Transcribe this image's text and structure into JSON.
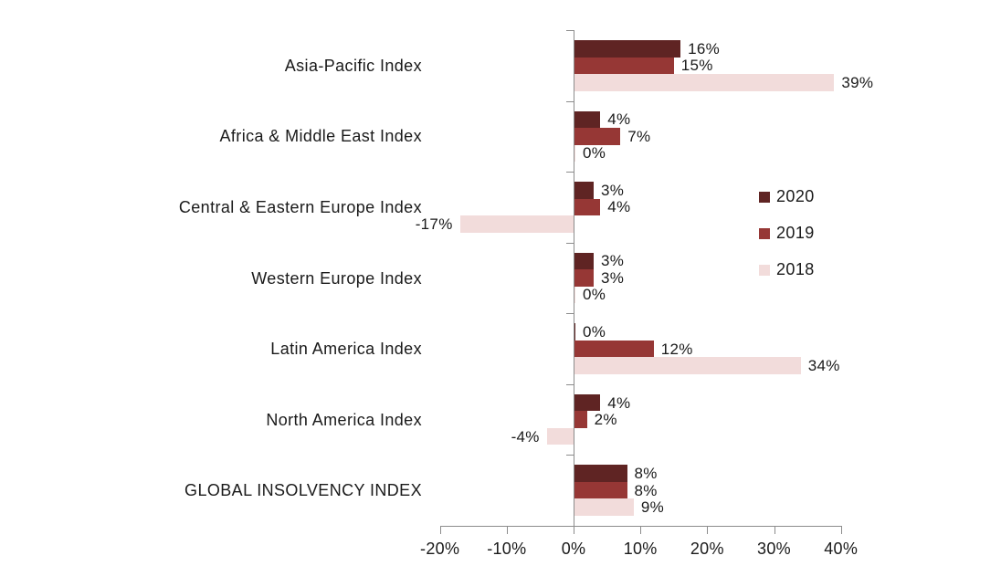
{
  "chart_data": {
    "type": "bar",
    "orientation": "horizontal",
    "title": "",
    "categories": [
      "Asia-Pacific Index",
      "Africa & Middle East Index",
      "Central & Eastern Europe Index",
      "Western Europe Index",
      "Latin America Index",
      "North America Index",
      "GLOBAL INSOLVENCY INDEX"
    ],
    "series": [
      {
        "name": "2020",
        "color": "#5F2423",
        "values": [
          16,
          4,
          3,
          3,
          0,
          4,
          8
        ]
      },
      {
        "name": "2019",
        "color": "#963735",
        "values": [
          15,
          7,
          4,
          3,
          12,
          2,
          8
        ]
      },
      {
        "name": "2018",
        "color": "#F2DCDB",
        "values": [
          39,
          0,
          -17,
          0,
          34,
          -4,
          9
        ]
      }
    ],
    "value_label_suffix": "%",
    "x_axis": {
      "min": -20,
      "max": 40,
      "step": 10,
      "tick_labels": [
        "-20%",
        "-10%",
        "0%",
        "10%",
        "20%",
        "30%",
        "40%"
      ]
    },
    "legend": {
      "position": "right",
      "entries": [
        "2020",
        "2019",
        "2018"
      ]
    },
    "grid": false,
    "axis_color": "#8C8C8C",
    "text_color": "#1A1A1A",
    "background": "#FFFFFF"
  }
}
